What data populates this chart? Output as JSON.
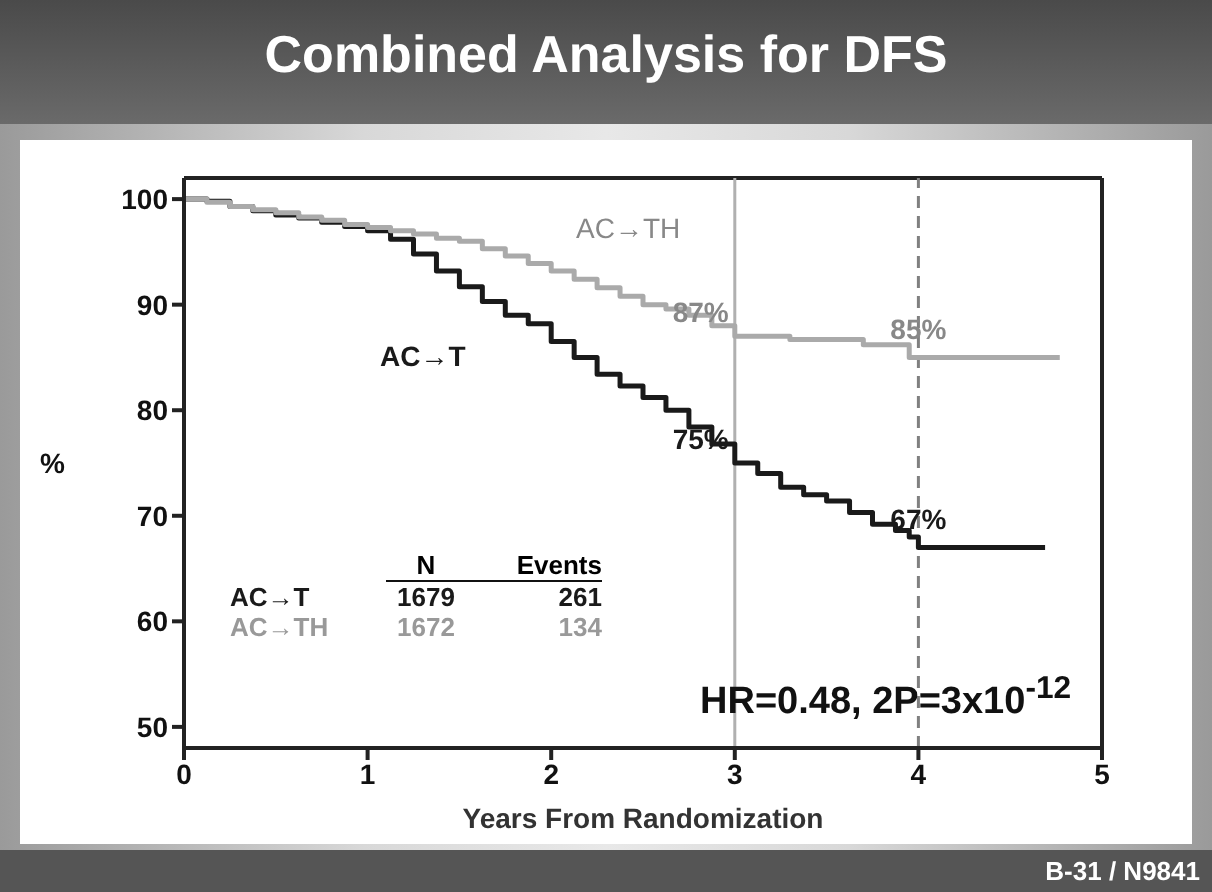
{
  "chart_data": {
    "type": "step",
    "title": "Combined Analysis for DFS",
    "xlabel": "Years From Randomization",
    "ylabel": "%",
    "xlim": [
      0,
      5
    ],
    "xticks": [
      0,
      1,
      2,
      3,
      4,
      5
    ],
    "ylim": [
      48,
      102
    ],
    "yticks": [
      50,
      60,
      70,
      80,
      90,
      100
    ],
    "marker": "none",
    "line_style": "solid",
    "series": [
      {
        "name": "AC→T",
        "color": "#1a1a1a",
        "x": [
          0,
          0.125,
          0.25,
          0.375,
          0.5,
          0.625,
          0.75,
          0.875,
          1,
          1.125,
          1.25,
          1.375,
          1.5,
          1.625,
          1.75,
          1.875,
          2,
          2.125,
          2.25,
          2.375,
          2.5,
          2.625,
          2.75,
          2.875,
          3,
          3.125,
          3.25,
          3.375,
          3.5,
          3.625,
          3.75,
          3.875,
          3.95,
          4,
          4.69
        ],
        "values": [
          100,
          99.8,
          99.3,
          98.9,
          98.5,
          98.2,
          97.8,
          97.4,
          97,
          96.2,
          94.8,
          93.2,
          91.7,
          90.3,
          89,
          88.2,
          86.5,
          85,
          83.4,
          82.3,
          81.2,
          80,
          78.4,
          76.8,
          75,
          74,
          72.7,
          72,
          71.4,
          70.3,
          69.2,
          68.6,
          68,
          67,
          67
        ],
        "value_labels": [
          null,
          null,
          null,
          null,
          null,
          null,
          null,
          null,
          null,
          null,
          null,
          null,
          null,
          null,
          null,
          null,
          null,
          null,
          null,
          null,
          null,
          null,
          null,
          null,
          "75%",
          null,
          null,
          null,
          null,
          null,
          null,
          null,
          null,
          "67%",
          null
        ]
      },
      {
        "name": "AC→TH",
        "color": "#aaaaaa",
        "x": [
          0,
          0.125,
          0.25,
          0.375,
          0.5,
          0.625,
          0.75,
          0.875,
          1,
          1.125,
          1.25,
          1.375,
          1.5,
          1.625,
          1.75,
          1.875,
          2,
          2.125,
          2.25,
          2.375,
          2.5,
          2.625,
          2.75,
          2.875,
          3,
          3.3,
          3.7,
          3.95,
          4,
          4.77
        ],
        "values": [
          100,
          99.7,
          99.3,
          99,
          98.7,
          98.3,
          98,
          97.6,
          97.3,
          97,
          96.7,
          96.3,
          96,
          95.3,
          94.6,
          93.9,
          93.2,
          92.4,
          91.6,
          90.8,
          90,
          89.6,
          89,
          88,
          87,
          86.7,
          86.2,
          85,
          85,
          85
        ],
        "value_labels": [
          null,
          null,
          null,
          null,
          null,
          null,
          null,
          null,
          null,
          null,
          null,
          null,
          null,
          null,
          null,
          null,
          null,
          null,
          null,
          null,
          null,
          null,
          null,
          null,
          "87%",
          null,
          null,
          null,
          "85%",
          null
        ]
      }
    ],
    "ref_lines": [
      {
        "axis": "x",
        "value": 3,
        "color": "#b0b0b0",
        "line_style": "solid"
      },
      {
        "axis": "x",
        "value": 4,
        "color": "#808080",
        "line_style": "dashed"
      }
    ],
    "annotations": [
      "HR=0.48, 2P=3x10$^{-12}$",
      "B-31 / N9841",
      "N",
      "Events",
      "AC→T",
      "1679",
      "261",
      "AC→TH",
      "1672",
      "134"
    ]
  }
}
